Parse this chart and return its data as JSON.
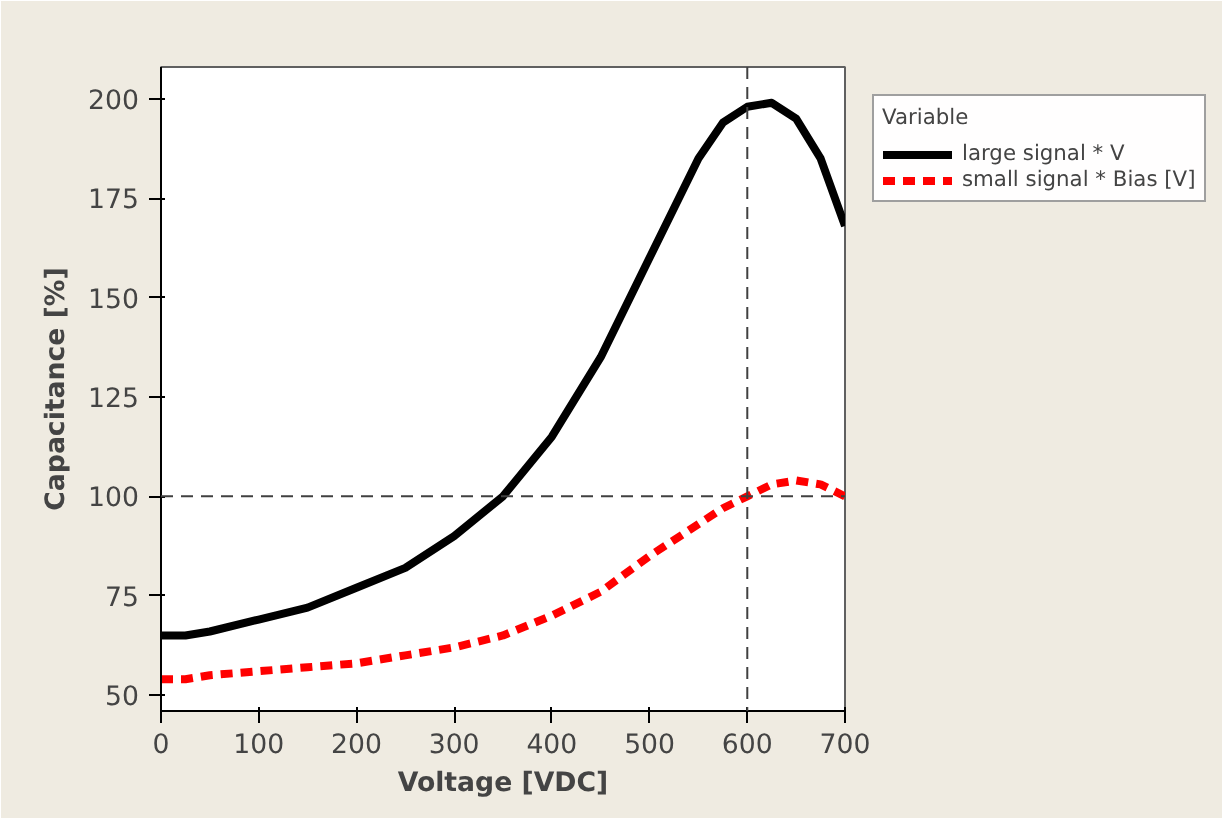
{
  "chart_data": {
    "type": "line",
    "xlabel": "Voltage [VDC]",
    "ylabel": "Capacitance [%]",
    "legend_title": "Variable",
    "x": [
      0,
      25,
      50,
      100,
      150,
      200,
      250,
      300,
      350,
      400,
      450,
      500,
      550,
      575,
      600,
      625,
      650,
      675,
      700
    ],
    "series": [
      {
        "name": "large signal * V",
        "color": "#000000",
        "line_style": "solid",
        "values": [
          65,
          65,
          66,
          69,
          72,
          77,
          82,
          90,
          100,
          115,
          135,
          160,
          185,
          194,
          198,
          199,
          195,
          185,
          168
        ]
      },
      {
        "name": "small signal * Bias [V]",
        "color": "#ff0000",
        "line_style": "dashed",
        "values": [
          54,
          54,
          55,
          56,
          57,
          58,
          60,
          62,
          65,
          70,
          76,
          85,
          93,
          97,
          100,
          103,
          104,
          103,
          100
        ]
      }
    ],
    "xlim": [
      0,
      700
    ],
    "ylim": [
      46,
      208
    ],
    "xticks": [
      0,
      100,
      200,
      300,
      400,
      500,
      600,
      700
    ],
    "yticks": [
      50,
      75,
      100,
      125,
      150,
      175,
      200
    ],
    "ref_lines": [
      {
        "axis": "x",
        "value": 600,
        "color": "#404040",
        "line_style": "dashed"
      },
      {
        "axis": "y",
        "value": 100,
        "color": "#404040",
        "line_style": "dashed"
      }
    ],
    "grid": false,
    "legend": "top right",
    "marker": "none"
  }
}
